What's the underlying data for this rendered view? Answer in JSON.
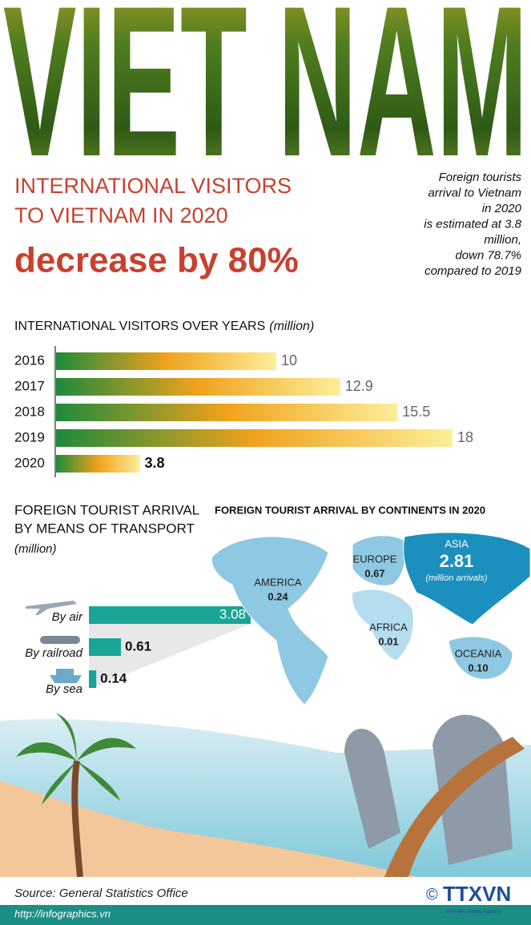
{
  "header": {
    "title": "VIET NAM",
    "headline_1": "INTERNATIONAL VISITORS",
    "headline_2": "TO VIETNAM IN 2020",
    "headline_3": "decrease by 80%"
  },
  "note": [
    "Foreign tourists",
    "arrival to Vietnam",
    "in 2020",
    "is estimated at 3.8",
    "million,",
    "down 78.7%",
    "compared to 2019"
  ],
  "chart_data": [
    {
      "type": "bar",
      "orientation": "horizontal",
      "title": "INTERNATIONAL VISITORS OVER YEARS",
      "unit": "(million)",
      "categories": [
        "2016",
        "2017",
        "2018",
        "2019",
        "2020"
      ],
      "values": [
        10,
        12.9,
        15.5,
        18,
        3.8
      ],
      "colors": [
        "#1e8a3c",
        "#f0a21c",
        "#fdee98"
      ]
    },
    {
      "type": "bar",
      "orientation": "horizontal",
      "title_lines": [
        "FOREIGN TOURIST ARRIVAL",
        "BY MEANS OF TRANSPORT"
      ],
      "unit": "(million)",
      "categories": [
        "By air",
        "By railroad",
        "By sea"
      ],
      "values": [
        3.08,
        0.61,
        0.14
      ],
      "color": "#1ba596"
    },
    {
      "type": "map",
      "title": "FOREIGN TOURIST ARRIVAL BY CONTINENTS IN 2020",
      "categories": [
        "AMERICA",
        "EUROPE",
        "ASIA",
        "AFRICA",
        "OCEANIA"
      ],
      "values": [
        0.24,
        0.67,
        2.81,
        0.01,
        0.1
      ],
      "value_labels": [
        "0.24",
        "0.67",
        "2.81",
        "0.01",
        "0.10"
      ],
      "unit": "(million arrivals)",
      "colors": [
        "#8ec8e2",
        "#8ec8e2",
        "#1b8fbe",
        "#b5dcef",
        "#8ec8e2"
      ]
    }
  ],
  "footer": {
    "source": "Source: General Statistics Office",
    "url": "http://infographics.vn",
    "copyright": "©",
    "logo": "TTXVN",
    "agency": "Vietnam News Agency"
  }
}
